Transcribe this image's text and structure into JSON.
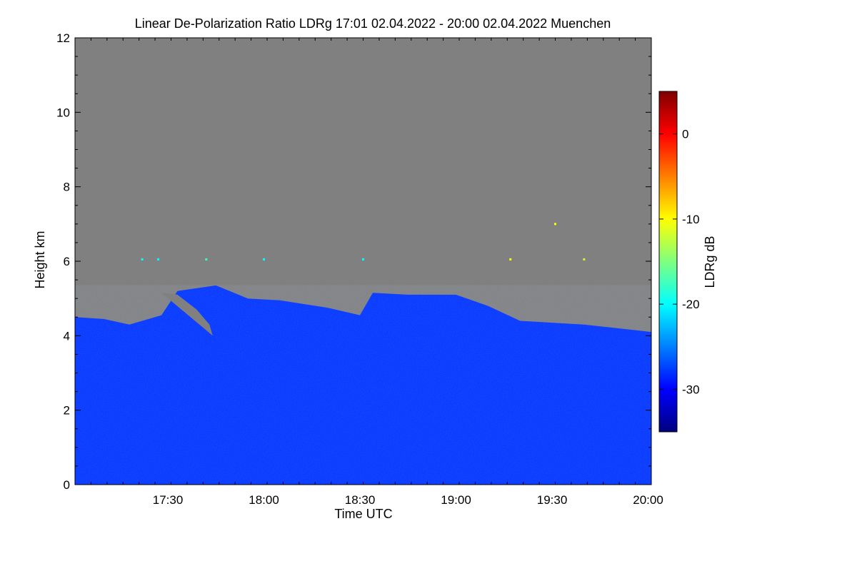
{
  "chart_data": {
    "type": "heatmap",
    "title": "Linear De-Polarization Ratio LDRg   17:01 02.04.2022 - 20:00 02.04.2022 Muenchen",
    "xlabel": "Time UTC",
    "ylabel": "Height km",
    "x_range": [
      "17:01",
      "20:01"
    ],
    "x_ticks": [
      "17:30",
      "18:00",
      "18:30",
      "19:00",
      "19:30",
      "20:00"
    ],
    "y_range": [
      0,
      12
    ],
    "y_ticks": [
      "0",
      "2",
      "4",
      "6",
      "8",
      "10",
      "12"
    ],
    "colorbar": {
      "label": "LDRg dB",
      "range": [
        -35,
        5
      ],
      "ticks": [
        "0",
        "-10",
        "-20",
        "-30"
      ],
      "colormap": [
        "#00007f",
        "#0000ff",
        "#007fff",
        "#00ffff",
        "#7fff7f",
        "#ffff00",
        "#ff7f00",
        "#ff0000",
        "#7f0000"
      ]
    },
    "no_signal_color": "#808080",
    "main_value_db": -28,
    "layer_top_km": [
      {
        "time": "17:01",
        "height": 4.5
      },
      {
        "time": "17:10",
        "height": 4.45
      },
      {
        "time": "17:18",
        "height": 4.3
      },
      {
        "time": "17:28",
        "height": 4.55
      },
      {
        "time": "17:33",
        "height": 5.2
      },
      {
        "time": "17:45",
        "height": 5.35
      },
      {
        "time": "17:55",
        "height": 5.0
      },
      {
        "time": "18:05",
        "height": 4.95
      },
      {
        "time": "18:20",
        "height": 4.75
      },
      {
        "time": "18:30",
        "height": 4.55
      },
      {
        "time": "18:34",
        "height": 5.15
      },
      {
        "time": "18:45",
        "height": 5.1
      },
      {
        "time": "19:00",
        "height": 5.1
      },
      {
        "time": "19:10",
        "height": 4.8
      },
      {
        "time": "19:20",
        "height": 4.4
      },
      {
        "time": "19:40",
        "height": 4.3
      },
      {
        "time": "20:01",
        "height": 4.1
      }
    ],
    "clear_gap": [
      {
        "time": "17:33",
        "height": 5.1
      },
      {
        "time": "17:39",
        "height": 4.7
      },
      {
        "time": "17:43",
        "height": 4.3
      },
      {
        "time": "17:44",
        "height": 4.0
      }
    ],
    "sparse_points_6km": [
      {
        "time": "17:22",
        "height": 6.05,
        "db": -20
      },
      {
        "time": "17:27",
        "height": 6.05,
        "db": -20
      },
      {
        "time": "17:42",
        "height": 6.05,
        "db": -18
      },
      {
        "time": "18:00",
        "height": 6.05,
        "db": -20
      },
      {
        "time": "18:31",
        "height": 6.05,
        "db": -20
      },
      {
        "time": "19:17",
        "height": 6.05,
        "db": -10
      },
      {
        "time": "19:31",
        "height": 7.0,
        "db": -10
      },
      {
        "time": "19:40",
        "height": 6.05,
        "db": -12
      }
    ],
    "grid": false,
    "legend": "colorbar-right"
  }
}
